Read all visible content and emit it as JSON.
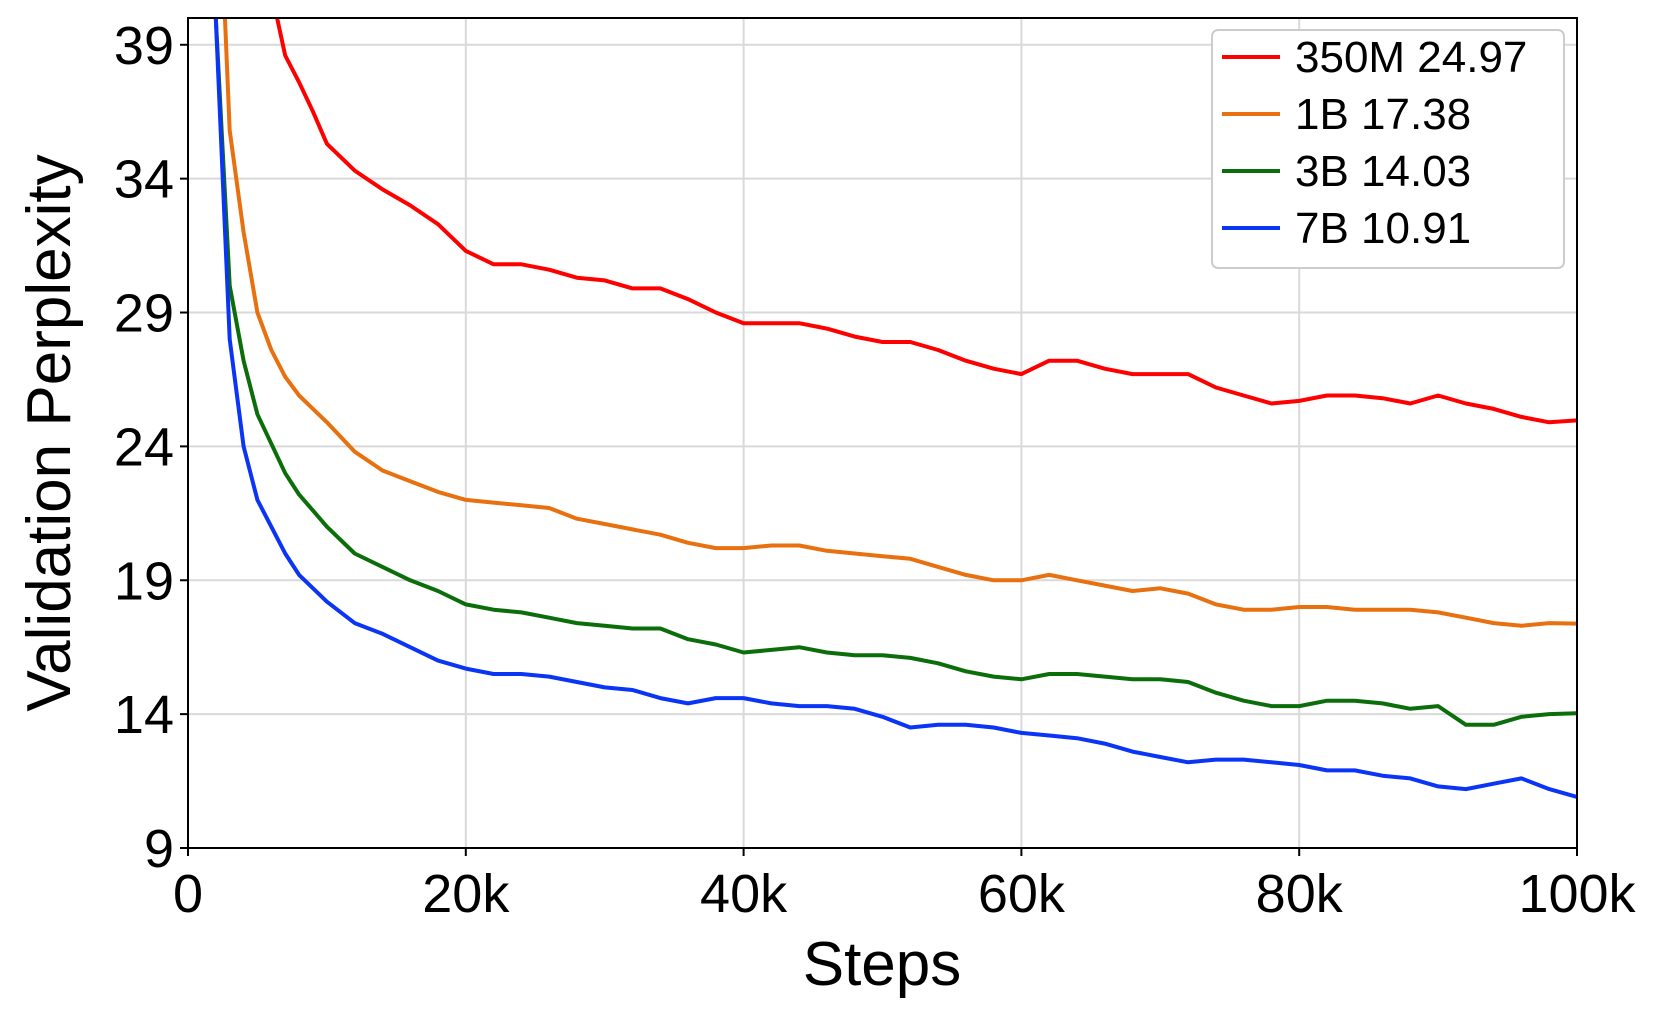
{
  "chart_data": {
    "type": "line",
    "xlabel": "Steps",
    "ylabel": "Validation Perplexity",
    "xlim": [
      0,
      100000
    ],
    "ylim": [
      9,
      40
    ],
    "xticks": [
      0,
      20000,
      40000,
      60000,
      80000,
      100000
    ],
    "xtick_labels": [
      "0",
      "20k",
      "40k",
      "60k",
      "80k",
      "100k"
    ],
    "yticks": [
      9,
      14,
      19,
      24,
      29,
      34,
      39
    ],
    "ytick_labels": [
      "9",
      "14",
      "19",
      "24",
      "29",
      "34",
      "39"
    ],
    "grid": true,
    "legend_position": "top-right",
    "series": [
      {
        "name": "350M 24.97",
        "color": "#ff0000",
        "x": [
          5000,
          6000,
          7000,
          8000,
          9000,
          10000,
          12000,
          14000,
          16000,
          18000,
          20000,
          22000,
          24000,
          26000,
          28000,
          30000,
          32000,
          34000,
          36000,
          38000,
          40000,
          42000,
          44000,
          46000,
          48000,
          50000,
          52000,
          54000,
          56000,
          58000,
          60000,
          62000,
          64000,
          66000,
          68000,
          70000,
          72000,
          74000,
          76000,
          78000,
          80000,
          82000,
          84000,
          86000,
          88000,
          90000,
          92000,
          94000,
          96000,
          98000,
          100000
        ],
        "y": [
          45,
          41,
          38.6,
          37.6,
          36.5,
          35.3,
          34.3,
          33.6,
          33.0,
          32.3,
          31.3,
          30.8,
          30.8,
          30.6,
          30.3,
          30.2,
          29.9,
          29.9,
          29.5,
          29.0,
          28.6,
          28.6,
          28.6,
          28.4,
          28.1,
          27.9,
          27.9,
          27.6,
          27.2,
          26.9,
          26.7,
          27.2,
          27.2,
          26.9,
          26.7,
          26.7,
          26.7,
          26.2,
          25.9,
          25.6,
          25.7,
          25.9,
          25.9,
          25.8,
          25.6,
          25.9,
          25.6,
          25.4,
          25.1,
          24.9,
          24.97
        ]
      },
      {
        "name": "1B 17.38",
        "color": "#e8700f",
        "x": [
          2500,
          3000,
          4000,
          5000,
          6000,
          7000,
          8000,
          9000,
          10000,
          12000,
          14000,
          16000,
          18000,
          20000,
          22000,
          24000,
          26000,
          28000,
          30000,
          32000,
          34000,
          36000,
          38000,
          40000,
          42000,
          44000,
          46000,
          48000,
          50000,
          52000,
          54000,
          56000,
          58000,
          60000,
          62000,
          64000,
          66000,
          68000,
          70000,
          72000,
          74000,
          76000,
          78000,
          80000,
          82000,
          84000,
          86000,
          88000,
          90000,
          92000,
          94000,
          96000,
          98000,
          100000
        ],
        "y": [
          42,
          35.8,
          32.0,
          29.0,
          27.6,
          26.6,
          25.9,
          25.4,
          24.9,
          23.8,
          23.1,
          22.7,
          22.3,
          22.0,
          21.9,
          21.8,
          21.7,
          21.3,
          21.1,
          20.9,
          20.7,
          20.4,
          20.2,
          20.2,
          20.3,
          20.3,
          20.1,
          20.0,
          19.9,
          19.8,
          19.5,
          19.2,
          19.0,
          19.0,
          19.2,
          19.0,
          18.8,
          18.6,
          18.7,
          18.5,
          18.1,
          17.9,
          17.9,
          18.0,
          18.0,
          17.9,
          17.9,
          17.9,
          17.8,
          17.6,
          17.4,
          17.3,
          17.4,
          17.38
        ]
      },
      {
        "name": "3B 14.03",
        "color": "#0b6e0b",
        "x": [
          2000,
          3000,
          4000,
          5000,
          6000,
          7000,
          8000,
          9000,
          10000,
          12000,
          14000,
          16000,
          18000,
          20000,
          22000,
          24000,
          26000,
          28000,
          30000,
          32000,
          34000,
          36000,
          38000,
          40000,
          42000,
          44000,
          46000,
          48000,
          50000,
          52000,
          54000,
          56000,
          58000,
          60000,
          62000,
          64000,
          66000,
          68000,
          70000,
          72000,
          74000,
          76000,
          78000,
          80000,
          82000,
          84000,
          86000,
          88000,
          90000,
          92000,
          94000,
          96000,
          98000,
          100000
        ],
        "y": [
          40,
          30.0,
          27.2,
          25.2,
          24.1,
          23.0,
          22.2,
          21.6,
          21.0,
          20.0,
          19.5,
          19.0,
          18.6,
          18.1,
          17.9,
          17.8,
          17.6,
          17.4,
          17.3,
          17.2,
          17.2,
          16.8,
          16.6,
          16.3,
          16.4,
          16.5,
          16.3,
          16.2,
          16.2,
          16.1,
          15.9,
          15.6,
          15.4,
          15.3,
          15.5,
          15.5,
          15.4,
          15.3,
          15.3,
          15.2,
          14.8,
          14.5,
          14.3,
          14.3,
          14.5,
          14.5,
          14.4,
          14.2,
          14.3,
          13.6,
          13.6,
          13.9,
          14.0,
          14.03
        ]
      },
      {
        "name": "7B 10.91",
        "color": "#0a35f5",
        "x": [
          2000,
          3000,
          4000,
          5000,
          6000,
          7000,
          8000,
          9000,
          10000,
          12000,
          14000,
          16000,
          18000,
          20000,
          22000,
          24000,
          26000,
          28000,
          30000,
          32000,
          34000,
          36000,
          38000,
          40000,
          42000,
          44000,
          46000,
          48000,
          50000,
          52000,
          54000,
          56000,
          58000,
          60000,
          62000,
          64000,
          66000,
          68000,
          70000,
          72000,
          74000,
          76000,
          78000,
          80000,
          82000,
          84000,
          86000,
          88000,
          90000,
          92000,
          94000,
          96000,
          98000,
          100000
        ],
        "y": [
          40,
          28.0,
          24.0,
          22.0,
          21.0,
          20.0,
          19.2,
          18.7,
          18.2,
          17.4,
          17.0,
          16.5,
          16.0,
          15.7,
          15.5,
          15.5,
          15.4,
          15.2,
          15.0,
          14.9,
          14.6,
          14.4,
          14.6,
          14.6,
          14.4,
          14.3,
          14.3,
          14.2,
          13.9,
          13.5,
          13.6,
          13.6,
          13.5,
          13.3,
          13.2,
          13.1,
          12.9,
          12.6,
          12.4,
          12.2,
          12.3,
          12.3,
          12.2,
          12.1,
          11.9,
          11.9,
          11.7,
          11.6,
          11.3,
          11.2,
          11.4,
          11.6,
          11.2,
          10.91
        ]
      }
    ]
  }
}
